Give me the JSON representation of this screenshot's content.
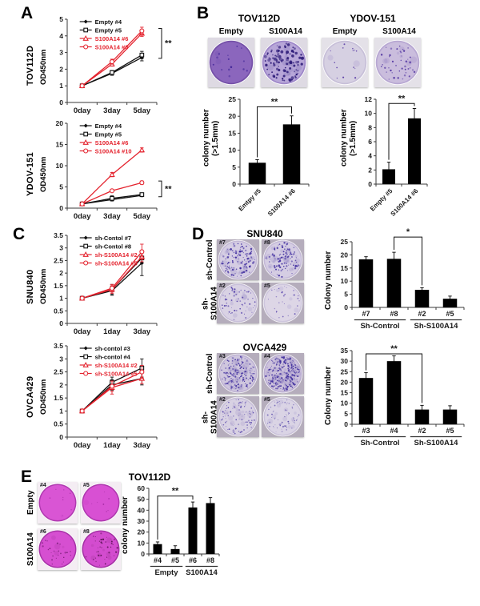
{
  "panels": {
    "A": {
      "letter": "A"
    },
    "B": {
      "letter": "B",
      "groups": [
        {
          "title": "TOV112D",
          "conditions": [
            "Empty",
            "S100A14"
          ]
        },
        {
          "title": "YDOV-151",
          "conditions": [
            "Empty",
            "S100A14"
          ]
        }
      ]
    },
    "C": {
      "letter": "C"
    },
    "D": {
      "letter": "D",
      "blocks": [
        {
          "title": "SNU840",
          "row_labels": [
            "sh-Control",
            "sh-S100A14"
          ]
        },
        {
          "title": "OVCA429",
          "row_labels": [
            "sh-Control",
            "sh-S100A14"
          ]
        }
      ]
    },
    "E": {
      "letter": "E",
      "title": "TOV112D",
      "row_labels": [
        "Empty",
        "S100A14"
      ]
    }
  },
  "colors": {
    "accent_red": "#e4232e",
    "series_black": "#111111",
    "bar": "#000000",
    "axis": "#3a3a3a"
  },
  "chart_data": [
    {
      "type": "line",
      "title_vertical": "TOV112D",
      "ylabel": "OD450nm",
      "categories": [
        "0day",
        "3day",
        "5day"
      ],
      "ylim": [
        0,
        5
      ],
      "yticks": [
        0,
        1,
        2,
        3,
        4,
        5
      ],
      "layout": {
        "l": 20,
        "r": 34,
        "t": 4,
        "b": 20,
        "legx": 0.14
      },
      "series": [
        {
          "name": "Empty #4",
          "color": "#111111",
          "marker": "diamond-filled",
          "values": [
            1.0,
            1.75,
            2.7
          ],
          "errors": [
            0.05,
            0.12,
            0.2
          ]
        },
        {
          "name": "Empty #5",
          "color": "#111111",
          "marker": "square-open",
          "values": [
            1.0,
            1.8,
            2.85
          ],
          "errors": [
            0.05,
            0.12,
            0.22
          ]
        },
        {
          "name": "S100A14 #6",
          "color": "#e4232e",
          "marker": "triangle-open",
          "values": [
            1.0,
            2.3,
            4.15
          ],
          "errors": [
            0.05,
            0.12,
            0.18
          ]
        },
        {
          "name": "S100A14 #8",
          "color": "#e4232e",
          "marker": "circle-open",
          "values": [
            1.0,
            2.45,
            4.3
          ],
          "errors": [
            0.05,
            0.15,
            0.22
          ]
        }
      ],
      "significance": {
        "label": "**",
        "hi": 4.45,
        "lo": 2.65
      }
    },
    {
      "type": "line",
      "title_vertical": "YDOV-151",
      "ylabel": "OD450nm",
      "categories": [
        "0day",
        "3day",
        "5day"
      ],
      "ylim": [
        0,
        20
      ],
      "yticks": [
        0,
        5,
        10,
        15,
        20
      ],
      "layout": {
        "l": 20,
        "r": 34,
        "t": 4,
        "b": 20,
        "legx": 0.14
      },
      "series": [
        {
          "name": "Empty #4",
          "color": "#111111",
          "marker": "diamond-filled",
          "values": [
            1.0,
            2.0,
            3.0
          ],
          "errors": [
            0.15,
            0.3,
            0.3
          ]
        },
        {
          "name": "Empty #5",
          "color": "#111111",
          "marker": "square-open",
          "values": [
            1.0,
            2.3,
            3.2
          ],
          "errors": [
            0.15,
            0.6,
            0.4
          ]
        },
        {
          "name": "S100A14 #6",
          "color": "#e4232e",
          "marker": "triangle-open",
          "values": [
            1.0,
            7.9,
            13.7
          ],
          "errors": [
            0.15,
            0.5,
            0.5
          ]
        },
        {
          "name": "S100A14 #10",
          "color": "#e4232e",
          "marker": "circle-open",
          "values": [
            1.0,
            4.1,
            6.0
          ],
          "errors": [
            0.15,
            0.3,
            0.4
          ]
        }
      ],
      "significance": {
        "label": "**",
        "hi": 6.4,
        "lo": 2.7
      }
    },
    {
      "type": "bar",
      "ylabel": "colony number",
      "ylabel2": "(>1.5mm)",
      "categories": [
        "Emtpy #5",
        "S100A14 #6"
      ],
      "values": [
        6.3,
        17.6
      ],
      "errors": [
        0.9,
        2.5
      ],
      "ylim": [
        0,
        25
      ],
      "yticks": [
        0,
        5,
        10,
        15,
        20,
        25
      ],
      "layout": {
        "l": 22,
        "r": 12,
        "t": 10,
        "b": 46,
        "rot": true
      },
      "significance": {
        "label": "**",
        "from": 0,
        "to": 1,
        "height": 22.8
      }
    },
    {
      "type": "bar",
      "ylabel": "colony number",
      "ylabel2": "(>1.5mm)",
      "categories": [
        "Empty #5",
        "S100A14 #6"
      ],
      "values": [
        2.1,
        9.3
      ],
      "errors": [
        1.0,
        1.4
      ],
      "ylim": [
        0,
        12
      ],
      "yticks": [
        0,
        2,
        4,
        6,
        8,
        10,
        12
      ],
      "layout": {
        "l": 20,
        "r": 28,
        "t": 10,
        "b": 46,
        "rot": true
      },
      "significance": {
        "label": "**",
        "from": 0,
        "to": 1,
        "height": 11.4
      }
    },
    {
      "type": "line",
      "title_vertical": "SNU840",
      "ylabel": "OD450nm",
      "categories": [
        "0day",
        "1day",
        "3day"
      ],
      "ylim": [
        0,
        3.5
      ],
      "yticks": [
        0,
        0.5,
        1,
        1.5,
        2,
        2.5,
        3,
        3.5
      ],
      "layout": {
        "l": 20,
        "r": 34,
        "t": 4,
        "b": 20,
        "legx": 0.14
      },
      "series": [
        {
          "name": "sh-Contol #7",
          "color": "#111111",
          "marker": "diamond-filled",
          "values": [
            1.0,
            1.3,
            2.4
          ],
          "errors": [
            0.07,
            0.18,
            0.5
          ]
        },
        {
          "name": "sh-Contol #8",
          "color": "#111111",
          "marker": "square-open",
          "values": [
            1.0,
            1.35,
            2.6
          ],
          "errors": [
            0.07,
            0.2,
            0.2
          ]
        },
        {
          "name": "sh-S100A14 #2",
          "color": "#e4232e",
          "marker": "triangle-open",
          "values": [
            1.0,
            1.35,
            2.65
          ],
          "errors": [
            0.07,
            0.15,
            0.2
          ]
        },
        {
          "name": "sh-S100A14 #5",
          "color": "#e4232e",
          "marker": "circle-open",
          "values": [
            1.0,
            1.4,
            2.85
          ],
          "errors": [
            0.07,
            0.15,
            0.3
          ]
        }
      ]
    },
    {
      "type": "line",
      "title_vertical": "OVCA429",
      "ylabel": "OD450nm",
      "categories": [
        "0day",
        "1day",
        "3day"
      ],
      "ylim": [
        0,
        3.5
      ],
      "yticks": [
        0,
        0.5,
        1,
        1.5,
        2,
        2.5,
        3,
        3.5
      ],
      "layout": {
        "l": 20,
        "r": 34,
        "t": 4,
        "b": 20,
        "legx": 0.14
      },
      "series": [
        {
          "name": "sh-contol #3",
          "color": "#111111",
          "marker": "diamond-filled",
          "values": [
            1.0,
            2.0,
            2.25
          ],
          "errors": [
            0.07,
            0.2,
            0.25
          ]
        },
        {
          "name": "sh-contol #4",
          "color": "#111111",
          "marker": "square-open",
          "values": [
            1.0,
            2.1,
            2.65
          ],
          "errors": [
            0.07,
            0.2,
            0.35
          ]
        },
        {
          "name": "sh-S100A14 #2",
          "color": "#e4232e",
          "marker": "triangle-open",
          "values": [
            1.0,
            1.9,
            2.25
          ],
          "errors": [
            0.07,
            0.25,
            0.2
          ]
        },
        {
          "name": "sh-S100A14 #5",
          "color": "#e4232e",
          "marker": "circle-open",
          "values": [
            1.0,
            1.95,
            2.5
          ],
          "errors": [
            0.07,
            0.2,
            0.25
          ]
        }
      ]
    },
    {
      "type": "bar",
      "ylabel": "Colony number",
      "categories": [
        "#7",
        "#8",
        "#2",
        "#5"
      ],
      "values": [
        18.3,
        18.5,
        6.7,
        3.3
      ],
      "errors": [
        1.0,
        2.5,
        0.8,
        1.0
      ],
      "ylim": [
        0,
        25
      ],
      "yticks": [
        0,
        5,
        10,
        15,
        20,
        25
      ],
      "layout": {
        "l": 22,
        "r": 14,
        "t": 22,
        "b": 36
      },
      "groups": [
        {
          "label": "Sh-Control",
          "from": 0,
          "to": 1
        },
        {
          "label": "Sh-S100A14",
          "from": 2,
          "to": 3
        }
      ],
      "significance": {
        "label": "*",
        "from": 1,
        "to": 2,
        "height": 26.8
      }
    },
    {
      "type": "bar",
      "ylabel": "Colony number",
      "categories": [
        "#3",
        "#4",
        "#2",
        "#5"
      ],
      "values": [
        22,
        30,
        7,
        7
      ],
      "errors": [
        2.5,
        2.5,
        2.0,
        1.8
      ],
      "ylim": [
        0,
        35
      ],
      "yticks": [
        0,
        5,
        10,
        15,
        20,
        25,
        30,
        35
      ],
      "layout": {
        "l": 22,
        "r": 14,
        "t": 16,
        "b": 36
      },
      "groups": [
        {
          "label": "Sh-Control",
          "from": 0,
          "to": 1
        },
        {
          "label": "Sh-S100A14",
          "from": 2,
          "to": 3
        }
      ],
      "significance": {
        "label": "**",
        "from": 0,
        "to": 2,
        "height": 33.5
      }
    },
    {
      "type": "bar",
      "ylabel": "colony number",
      "categories": [
        "#4",
        "#5",
        "#6",
        "#8"
      ],
      "values": [
        9,
        4.5,
        42.5,
        46.5
      ],
      "errors": [
        2,
        3,
        5,
        5
      ],
      "ylim": [
        0,
        60
      ],
      "yticks": [
        0,
        10,
        20,
        30,
        40,
        50,
        60
      ],
      "layout": {
        "l": 22,
        "r": 8,
        "t": 14,
        "b": 28
      },
      "groups": [
        {
          "label": "Empty",
          "from": 0,
          "to": 1
        },
        {
          "label": "S100A14",
          "from": 2,
          "to": 3
        }
      ],
      "significance": {
        "label": "**",
        "from": 0,
        "to": 2,
        "height": 53
      }
    }
  ],
  "dishes": {
    "b": [
      {
        "corner_label": "",
        "base": "#8b66bd",
        "edge": "#7550a8",
        "dot_color": "#45289a",
        "dots": 14,
        "dot_min": 1.2,
        "dot_max": 2.6,
        "seed": 11
      },
      {
        "corner_label": "",
        "base": "#b7a6d8",
        "edge": "#9d86c8",
        "dot_color": "#2c1a78",
        "dots": 95,
        "dot_min": 1.3,
        "dot_max": 3.6,
        "seed": 22
      },
      {
        "corner_label": "",
        "base": "#d6d0e2",
        "edge": "#c7bfd8",
        "dot_color": "#5b3da6",
        "dots": 14,
        "dot_min": 0.9,
        "dot_max": 2.0,
        "seed": 33
      },
      {
        "corner_label": "",
        "base": "#cabddd",
        "edge": "#b7a7d2",
        "dot_color": "#4c2f9e",
        "dots": 42,
        "dot_min": 1.0,
        "dot_max": 2.4,
        "seed": 44
      }
    ],
    "d_snu840": [
      {
        "corner_label": "#7",
        "base": "#d5cde3",
        "edge": "#c3b8d6",
        "dot_color": "#3e2b9e",
        "dots": 115,
        "dot_min": 0.9,
        "dot_max": 2.6,
        "seed": 1
      },
      {
        "corner_label": "#8",
        "base": "#d5cde3",
        "edge": "#c3b8d6",
        "dot_color": "#3e2b9e",
        "dots": 100,
        "dot_min": 0.9,
        "dot_max": 2.6,
        "seed": 2
      },
      {
        "corner_label": "#2",
        "base": "#d9d2e4",
        "edge": "#c8bfd9",
        "dot_color": "#4c38a6",
        "dots": 55,
        "dot_min": 0.8,
        "dot_max": 2.2,
        "seed": 3
      },
      {
        "corner_label": "#5",
        "base": "#ddd6e6",
        "edge": "#cdc5dc",
        "dot_color": "#5c48ae",
        "dots": 28,
        "dot_min": 0.8,
        "dot_max": 2.0,
        "seed": 4
      }
    ],
    "d_ovca429": [
      {
        "corner_label": "#3",
        "base": "#cfc6de",
        "edge": "#bdb1d1",
        "dot_color": "#4331a0",
        "dots": 170,
        "dot_min": 0.8,
        "dot_max": 2.2,
        "seed": 5
      },
      {
        "corner_label": "#4",
        "base": "#cdc2dc",
        "edge": "#baadd0",
        "dot_color": "#3c2a9c",
        "dots": 215,
        "dot_min": 0.8,
        "dot_max": 2.4,
        "seed": 6
      },
      {
        "corner_label": "#2",
        "base": "#d8d1e3",
        "edge": "#c7bed8",
        "dot_color": "#5644aa",
        "dots": 85,
        "dot_min": 0.7,
        "dot_max": 2.0,
        "seed": 7
      },
      {
        "corner_label": "#5",
        "base": "#dad4e5",
        "edge": "#cac2da",
        "dot_color": "#6052ae",
        "dots": 70,
        "dot_min": 0.7,
        "dot_max": 1.9,
        "seed": 8
      }
    ],
    "e": [
      {
        "corner_label": "#4",
        "base": "#d955d4",
        "edge": "#b03ab0",
        "dot_color": "#a32ba3",
        "dots": 8,
        "dot_min": 0.8,
        "dot_max": 1.8,
        "seed": 9,
        "inset": "specks"
      },
      {
        "corner_label": "#5",
        "base": "#d850d3",
        "edge": "#ae38ae",
        "dot_color": "#a32ba3",
        "dots": 7,
        "dot_min": 0.8,
        "dot_max": 1.8,
        "seed": 10,
        "inset": "specks"
      },
      {
        "corner_label": "#6",
        "base": "#d64fd1",
        "edge": "#a833a8",
        "dot_color": "#6b176b",
        "dots": 26,
        "dot_min": 0.8,
        "dot_max": 2.2,
        "seed": 12,
        "inset": "ring"
      },
      {
        "corner_label": "#8",
        "base": "#d34ccf",
        "edge": "#a431a4",
        "dot_color": "#55104f",
        "dots": 40,
        "dot_min": 0.8,
        "dot_max": 2.4,
        "seed": 13,
        "inset": "ring"
      }
    ]
  }
}
